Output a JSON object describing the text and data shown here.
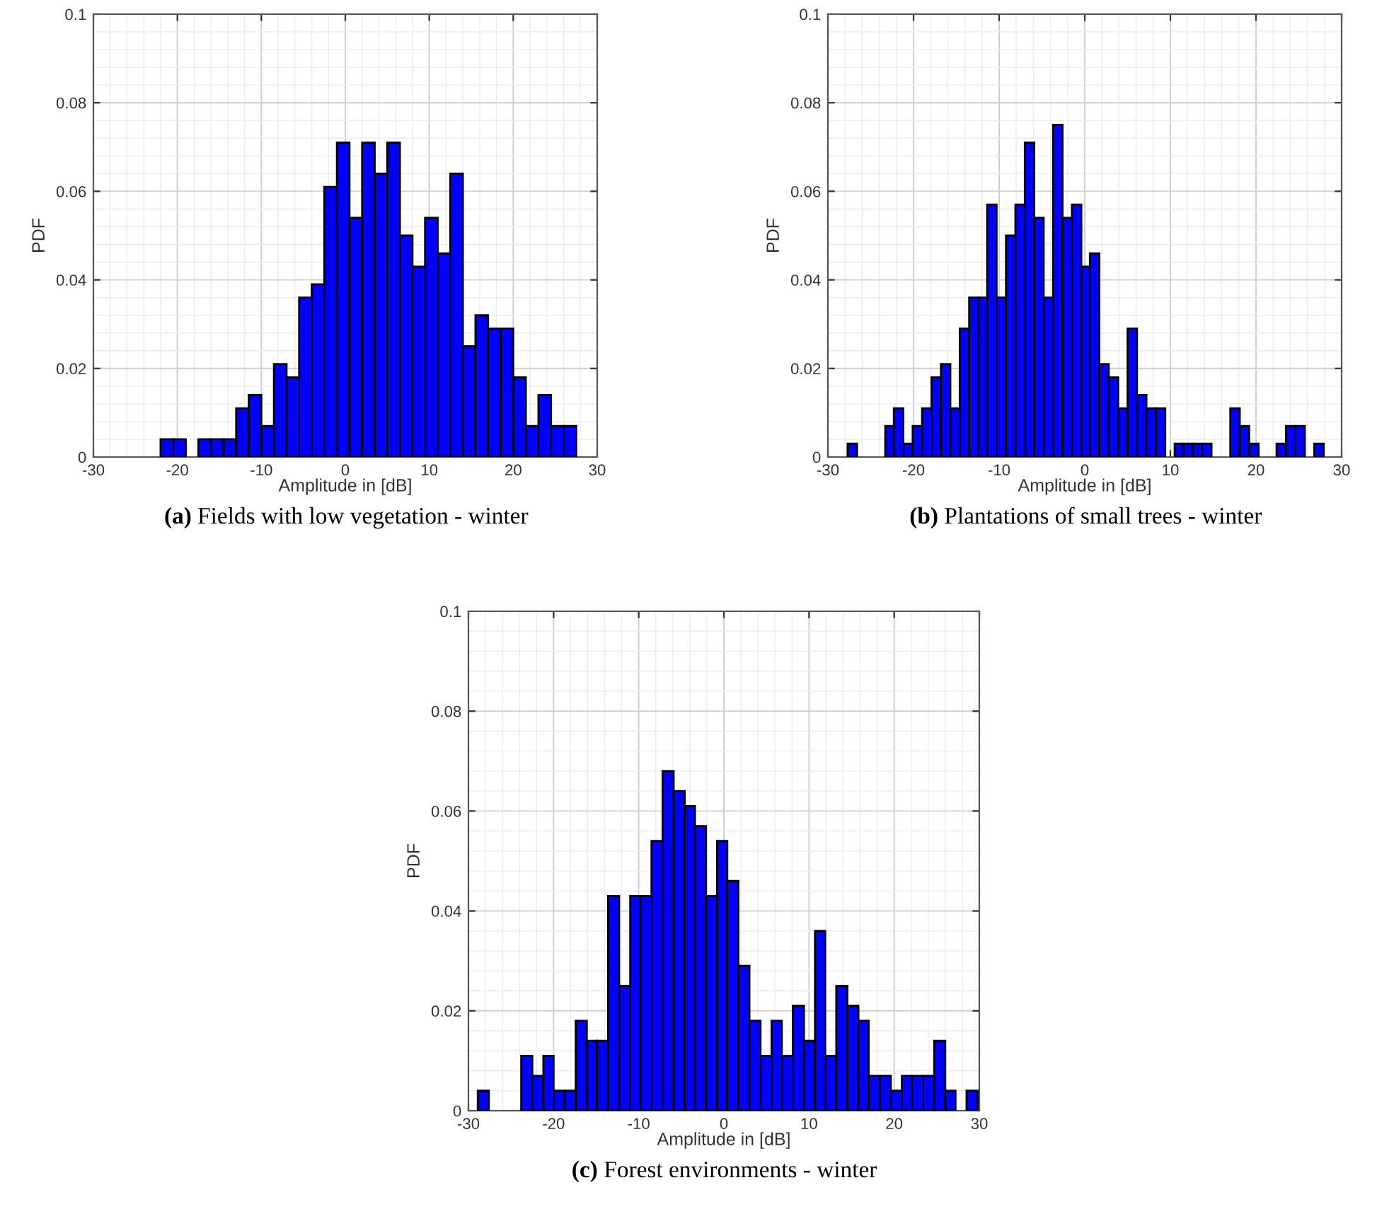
{
  "chart_data": [
    {
      "type": "histogram",
      "title": "(a) Fields with low vegetation - winter",
      "xlabel": "Amplitude in [dB]",
      "ylabel": "PDF",
      "color": "#0000ff",
      "grid": true,
      "bins": [
        -22,
        -20.5,
        -19,
        -17.5,
        -16,
        -14.5,
        -13,
        -11.5,
        -10,
        -8.5,
        -7,
        -5.5,
        -4,
        -2.5,
        -1,
        0.5,
        2,
        3.5,
        5,
        6.5,
        8,
        9.5,
        11,
        12.5,
        14,
        15.5,
        17,
        18.5,
        20,
        21.5,
        23,
        24.5,
        26,
        27.5
      ],
      "values": [
        0.004,
        0.004,
        0,
        0.004,
        0.004,
        0.004,
        0.011,
        0.014,
        0.007,
        0.021,
        0.018,
        0.036,
        0.039,
        0.061,
        0.071,
        0.054,
        0.071,
        0.064,
        0.071,
        0.05,
        0.043,
        0.054,
        0.046,
        0.064,
        0.025,
        0.032,
        0.029,
        0.029,
        0.018,
        0.007,
        0.014,
        0.007,
        0.007
      ],
      "xlim": [
        -30,
        30
      ],
      "xticks": [
        -30,
        -20,
        -10,
        0,
        10,
        20,
        30
      ],
      "ylim": [
        0,
        0.1
      ],
      "yticks": [
        0,
        0.02,
        0.04,
        0.06,
        0.08,
        0.1
      ]
    },
    {
      "type": "histogram",
      "title": "(b) Plantations of small trees - winter",
      "xlabel": "Amplitude in [dB]",
      "ylabel": "PDF",
      "color": "#0000ff",
      "grid": true,
      "bins": [
        -27.7,
        -26.6,
        -23.3,
        -22.3,
        -21.2,
        -20.1,
        -19.0,
        -17.9,
        -16.8,
        -15.7,
        -14.6,
        -13.5,
        -12.4,
        -11.4,
        -10.3,
        -9.2,
        -8.1,
        -7.0,
        -5.9,
        -4.8,
        -3.7,
        -2.6,
        -1.5,
        -0.4,
        0.6,
        1.7,
        2.8,
        3.9,
        5.0,
        6.1,
        7.2,
        8.3,
        9.4,
        10.5,
        11.5,
        12.6,
        13.7,
        14.8,
        17.0,
        18.1,
        19.2,
        20.3,
        22.4,
        23.5,
        24.6,
        25.7,
        26.8,
        27.9
      ],
      "values": [
        0.003,
        0,
        0.007,
        0.011,
        0.003,
        0.007,
        0.011,
        0.018,
        0.021,
        0.011,
        0.029,
        0.036,
        0.036,
        0.057,
        0.036,
        0.05,
        0.057,
        0.071,
        0.054,
        0.036,
        0.075,
        0.054,
        0.057,
        0.043,
        0.046,
        0.021,
        0.018,
        0.011,
        0.029,
        0.014,
        0.011,
        0.011,
        0,
        0.003,
        0.003,
        0.003,
        0.003,
        0,
        0.011,
        0.007,
        0.003,
        0,
        0.003,
        0.007,
        0.007,
        0,
        0.003
      ],
      "xlim": [
        -30,
        30
      ],
      "xticks": [
        -30,
        -20,
        -10,
        0,
        10,
        20,
        30
      ],
      "ylim": [
        0,
        0.1
      ],
      "yticks": [
        0,
        0.02,
        0.04,
        0.06,
        0.08,
        0.1
      ]
    },
    {
      "type": "histogram",
      "title": "(c) Forest environments - winter",
      "xlabel": "Amplitude in [dB]",
      "ylabel": "PDF",
      "color": "#0000ff",
      "grid": true,
      "bins": [
        -28.9,
        -27.6,
        -23.8,
        -22.5,
        -21.2,
        -20.0,
        -18.7,
        -17.4,
        -16.1,
        -14.9,
        -13.6,
        -12.3,
        -11.0,
        -9.8,
        -8.5,
        -7.2,
        -5.9,
        -4.6,
        -3.4,
        -2.1,
        -0.8,
        0.4,
        1.7,
        3.0,
        4.3,
        5.6,
        6.8,
        8.1,
        9.4,
        10.7,
        11.9,
        13.2,
        14.5,
        15.8,
        17.0,
        18.3,
        19.6,
        20.9,
        22.1,
        23.4,
        24.7,
        26.0,
        27.2,
        28.5,
        29.8
      ],
      "values": [
        0.004,
        0,
        0.011,
        0.007,
        0.011,
        0.004,
        0.004,
        0.018,
        0.014,
        0.014,
        0.043,
        0.025,
        0.043,
        0.043,
        0.054,
        0.068,
        0.064,
        0.061,
        0.057,
        0.043,
        0.054,
        0.046,
        0.029,
        0.018,
        0.011,
        0.018,
        0.011,
        0.021,
        0.014,
        0.036,
        0.011,
        0.025,
        0.021,
        0.018,
        0.007,
        0.007,
        0.004,
        0.007,
        0.007,
        0.007,
        0.014,
        0.004,
        0,
        0.004
      ],
      "xlim": [
        -30,
        30
      ],
      "xticks": [
        -30,
        -20,
        -10,
        0,
        10,
        20,
        30
      ],
      "ylim": [
        0,
        0.1
      ],
      "yticks": [
        0,
        0.02,
        0.04,
        0.06,
        0.08,
        0.1
      ]
    }
  ]
}
